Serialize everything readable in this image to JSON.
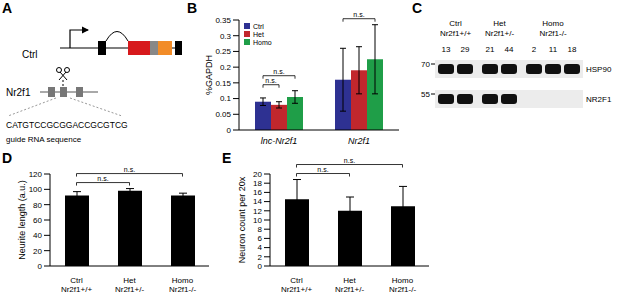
{
  "chart_data": [
    {
      "panel": "B",
      "type": "bar",
      "categories": [
        "lnc-Nr2f1",
        "Nr2f1"
      ],
      "ylabel": "%GAPDH",
      "ylim": [
        0,
        0.35
      ],
      "yticks": [
        0,
        0.05,
        0.1,
        0.15,
        0.2,
        0.25,
        0.3,
        0.35
      ],
      "legend": "top-left",
      "series": [
        {
          "name": "Ctrl",
          "color": "#2e3192",
          "values": [
            0.09,
            0.16
          ],
          "errors": [
            0.012,
            0.1
          ]
        },
        {
          "name": "Het",
          "color": "#c1272d",
          "values": [
            0.08,
            0.19
          ],
          "errors": [
            0.01,
            0.075
          ]
        },
        {
          "name": "Homo",
          "color": "#1f9e48",
          "values": [
            0.105,
            0.225
          ],
          "errors": [
            0.02,
            0.11
          ]
        }
      ],
      "annotations": [
        {
          "text": "n.s.",
          "category": "lnc-Nr2f1",
          "from": "Ctrl",
          "to": "Het"
        },
        {
          "text": "n.s.",
          "category": "lnc-Nr2f1",
          "from": "Ctrl",
          "to": "Homo"
        },
        {
          "text": "n.s.",
          "category": "Nr2f1",
          "from": "Ctrl",
          "to": "Homo"
        }
      ]
    },
    {
      "panel": "D",
      "type": "bar",
      "categories": [
        "Ctrl Nr2f1+/+",
        "Het Nr2f1+/-",
        "Homo Nr2f1-/-"
      ],
      "values": [
        92,
        98,
        92
      ],
      "errors": [
        5,
        3,
        3
      ],
      "color": "#000000",
      "ylabel": "Neurite length (a.u.)",
      "ylim": [
        0,
        120
      ],
      "yticks": [
        0,
        20,
        40,
        60,
        80,
        100,
        120
      ],
      "annotations": [
        {
          "text": "n.s.",
          "from": "Ctrl Nr2f1+/+",
          "to": "Het Nr2f1+/-"
        },
        {
          "text": "n.s.",
          "from": "Ctrl Nr2f1+/+",
          "to": "Homo Nr2f1-/-"
        }
      ]
    },
    {
      "panel": "E",
      "type": "bar",
      "categories": [
        "Ctrl Nr2f1+/+",
        "Het Nr2f1+/-",
        "Homo Nr2f1-/-"
      ],
      "values": [
        14.5,
        12,
        13
      ],
      "errors": [
        4.3,
        3,
        4.3
      ],
      "color": "#000000",
      "ylabel": "Neuron count per 20x",
      "ylim": [
        0,
        20
      ],
      "yticks": [
        0,
        2,
        4,
        6,
        8,
        10,
        12,
        14,
        16,
        18,
        20
      ],
      "annotations": [
        {
          "text": "n.s.",
          "from": "Ctrl Nr2f1+/+",
          "to": "Het Nr2f1+/-"
        },
        {
          "text": "n.s.",
          "from": "Ctrl Nr2f1+/+",
          "to": "Homo Nr2f1-/-"
        }
      ]
    }
  ],
  "diagrams": {
    "A": {
      "panel": "A",
      "constructs": [
        "Ctrl",
        "Nr2f1"
      ],
      "guide_rna": "CATGTCCGCGGACCGCGTCG",
      "guide_label": "guide RNA sequence"
    },
    "C": {
      "panel": "C",
      "markers": [
        70,
        55
      ],
      "bands": [
        "HSP90",
        "NR2F1"
      ],
      "groups": [
        {
          "label": "Ctrl Nr2f1+/+",
          "lanes": [
            13,
            29
          ],
          "detected": [
            "HSP90",
            "NR2F1"
          ]
        },
        {
          "label": "Het Nr2f1+/-",
          "lanes": [
            21,
            44
          ],
          "detected": [
            "HSP90",
            "NR2F1"
          ]
        },
        {
          "label": "Homo Nr2f1-/-",
          "lanes": [
            2,
            11,
            18
          ],
          "detected": [
            "HSP90"
          ]
        }
      ]
    }
  }
}
